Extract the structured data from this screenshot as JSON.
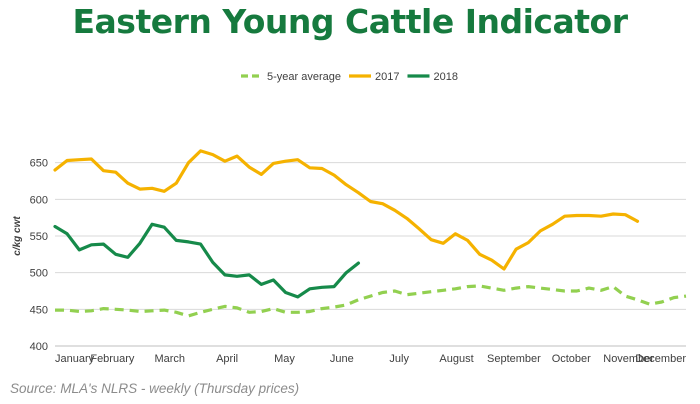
{
  "title": "Eastern Young Cattle Indicator",
  "source": "Source: MLA's NLRS - weekly (Thursday prices)",
  "colors": {
    "title": "#167a3e",
    "avg": "#92d050",
    "y2017": "#f5b200",
    "y2018": "#168a4a",
    "gridline": "#d9d9d9",
    "axis": "#bfbfbf"
  },
  "chart_data": {
    "type": "line",
    "title": "Eastern Young Cattle Indicator",
    "xlabel": "",
    "ylabel": "c/kg cwt",
    "ylim": [
      400,
      700
    ],
    "yticks": [
      400,
      450,
      500,
      550,
      600,
      650
    ],
    "grid": "horizontal",
    "legend_position": "top-center",
    "x_ticks": [
      "January",
      "February",
      "March",
      "April",
      "May",
      "June",
      "July",
      "August",
      "September",
      "October",
      "November",
      "December"
    ],
    "weeks_per_year": 52,
    "series": [
      {
        "name": "5-year average",
        "style": "dashed",
        "color": "#92d050",
        "values": [
          449,
          449,
          447,
          448,
          451,
          450,
          449,
          447,
          448,
          449,
          446,
          441,
          446,
          450,
          454,
          452,
          446,
          447,
          451,
          446,
          446,
          447,
          451,
          453,
          456,
          463,
          468,
          473,
          475,
          470,
          472,
          474,
          476,
          478,
          481,
          482,
          479,
          476,
          479,
          481,
          479,
          477,
          475,
          475,
          479,
          476,
          481,
          468,
          463,
          457,
          460,
          466,
          468
        ]
      },
      {
        "name": "2017",
        "style": "solid",
        "color": "#f5b200",
        "values": [
          640,
          653,
          654,
          655,
          639,
          637,
          622,
          614,
          615,
          611,
          622,
          650,
          666,
          661,
          652,
          659,
          644,
          634,
          649,
          652,
          654,
          643,
          642,
          633,
          620,
          609,
          597,
          594,
          585,
          574,
          560,
          545,
          540,
          553,
          544,
          525,
          517,
          505,
          532,
          541,
          557,
          566,
          577,
          578,
          578,
          577,
          580,
          579,
          570
        ]
      },
      {
        "name": "2018",
        "style": "solid",
        "color": "#168a4a",
        "values": [
          563,
          553,
          531,
          538,
          539,
          525,
          521,
          540,
          566,
          562,
          544,
          542,
          539,
          514,
          497,
          495,
          497,
          484,
          490,
          473,
          467,
          478,
          480,
          481,
          500,
          513
        ]
      }
    ]
  }
}
